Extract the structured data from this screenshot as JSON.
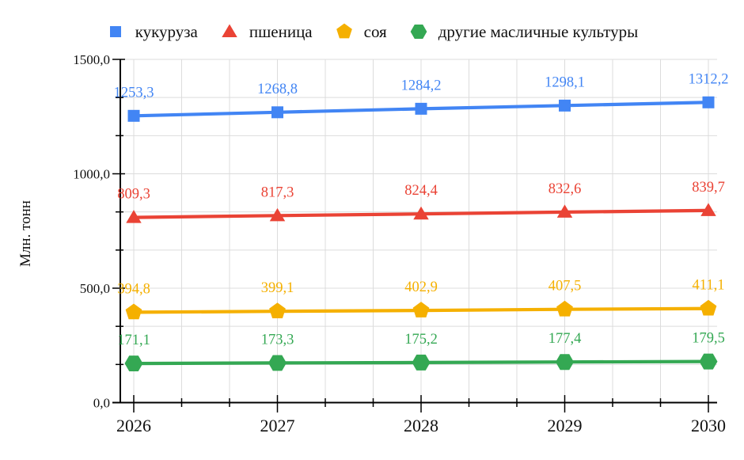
{
  "y_axis_title": "Млн. тонн",
  "chart_data": {
    "type": "line",
    "categories": [
      "2026",
      "2027",
      "2028",
      "2029",
      "2030"
    ],
    "series": [
      {
        "name": "кукуруза",
        "marker": "square",
        "color": "#4285F4",
        "values": [
          1253.3,
          1268.8,
          1284.2,
          1298.1,
          1312.2
        ],
        "labels": [
          "1253,3",
          "1268,8",
          "1284,2",
          "1298,1",
          "1312,2"
        ]
      },
      {
        "name": "пшеница",
        "marker": "triangle",
        "color": "#EA4335",
        "values": [
          809.3,
          817.3,
          824.4,
          832.6,
          839.7
        ],
        "labels": [
          "809,3",
          "817,3",
          "824,4",
          "832,6",
          "839,7"
        ]
      },
      {
        "name": "соя",
        "marker": "pentagon",
        "color": "#F5B000",
        "values": [
          394.8,
          399.1,
          402.9,
          407.5,
          411.1
        ],
        "labels": [
          "394,8",
          "399,1",
          "402,9",
          "407,5",
          "411,1"
        ]
      },
      {
        "name": "другие масличные культуры",
        "marker": "hexagon",
        "color": "#34A853",
        "values": [
          171.1,
          173.3,
          175.2,
          177.4,
          179.5
        ],
        "labels": [
          "171,1",
          "173,3",
          "175,2",
          "177,4",
          "179,5"
        ]
      }
    ],
    "title": "",
    "xlabel": "",
    "ylabel": "Млн. тонн",
    "ylim": [
      0,
      1500
    ],
    "y_ticks": [
      {
        "value": 0,
        "label": "0,0"
      },
      {
        "value": 500,
        "label": "500,0"
      },
      {
        "value": 1000,
        "label": "1000,0"
      },
      {
        "value": 1500,
        "label": "1500,0"
      }
    ],
    "minor_divisions_per_major": 3,
    "grid": true,
    "legend_position": "top"
  },
  "colors": {
    "axis": "#000000",
    "grid": "#dcdcdc",
    "tick_label": "#111111"
  }
}
